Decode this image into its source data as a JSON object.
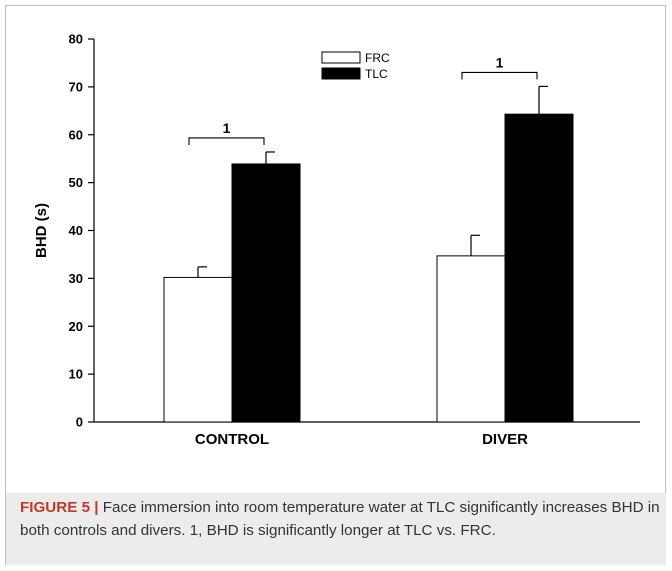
{
  "figure": {
    "label": "FIGURE 5",
    "separator": "|",
    "caption": "Face immersion into room temperature water at TLC significantly increases BHD in both controls and divers. 1, BHD is significantly longer at TLC vs. FRC."
  },
  "chart_data": {
    "type": "bar",
    "title": "",
    "xlabel": "",
    "ylabel": "BHD (s)",
    "ylim": [
      0,
      80
    ],
    "yticks": [
      0,
      10,
      20,
      30,
      40,
      50,
      60,
      70,
      80
    ],
    "categories": [
      "CONTROL",
      "DIVER"
    ],
    "series": [
      {
        "name": "FRC",
        "values": [
          30.2,
          34.7
        ],
        "errors": [
          2.2,
          4.3
        ],
        "fill": "#ffffff"
      },
      {
        "name": "TLC",
        "values": [
          53.9,
          64.3
        ],
        "errors": [
          2.5,
          5.8
        ],
        "fill": "#000000"
      }
    ],
    "legend": {
      "position": "top-center"
    },
    "grid": false,
    "annotations": [
      {
        "text": "1",
        "category": "CONTROL",
        "between": [
          "FRC",
          "TLC"
        ]
      },
      {
        "text": "1",
        "category": "DIVER",
        "between": [
          "FRC",
          "TLC"
        ]
      }
    ]
  }
}
